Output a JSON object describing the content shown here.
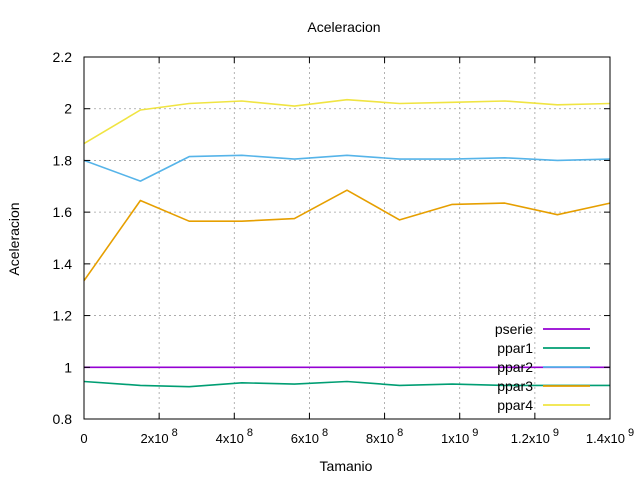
{
  "chart_data": {
    "type": "line",
    "title": "Aceleracion",
    "xlabel": "Tamanio",
    "ylabel": "Aceleracion",
    "xlim": [
      0,
      1400000000
    ],
    "ylim": [
      0.8,
      2.2
    ],
    "grid": true,
    "legend_position": "bottom-right",
    "x_ticks": [
      {
        "value": 0,
        "base": "0",
        "exp": ""
      },
      {
        "value": 200000000,
        "base": "2x10",
        "exp": "8"
      },
      {
        "value": 400000000,
        "base": "4x10",
        "exp": "8"
      },
      {
        "value": 600000000,
        "base": "6x10",
        "exp": "8"
      },
      {
        "value": 800000000,
        "base": "8x10",
        "exp": "8"
      },
      {
        "value": 1000000000,
        "base": "1x10",
        "exp": "9"
      },
      {
        "value": 1200000000,
        "base": "1.2x10",
        "exp": "9"
      },
      {
        "value": 1400000000,
        "base": "1.4x10",
        "exp": "9"
      }
    ],
    "y_ticks": [
      {
        "value": 0.8,
        "label": "0.8"
      },
      {
        "value": 1.0,
        "label": "1"
      },
      {
        "value": 1.2,
        "label": "1.2"
      },
      {
        "value": 1.4,
        "label": "1.4"
      },
      {
        "value": 1.6,
        "label": "1.6"
      },
      {
        "value": 1.8,
        "label": "1.8"
      },
      {
        "value": 2.0,
        "label": "2"
      },
      {
        "value": 2.2,
        "label": "2.2"
      }
    ],
    "x": [
      0,
      150000000,
      280000000,
      420000000,
      560000000,
      700000000,
      840000000,
      980000000,
      1120000000,
      1260000000,
      1400000000
    ],
    "series": [
      {
        "name": "pserie",
        "color": "#9400d3",
        "values": [
          1.0,
          1.0,
          1.0,
          1.0,
          1.0,
          1.0,
          1.0,
          1.0,
          1.0,
          1.0,
          1.0
        ]
      },
      {
        "name": "ppar1",
        "color": "#009e73",
        "values": [
          0.945,
          0.93,
          0.925,
          0.94,
          0.935,
          0.945,
          0.93,
          0.935,
          0.93,
          0.93,
          0.93
        ]
      },
      {
        "name": "ppar2",
        "color": "#56b4e9",
        "values": [
          1.8,
          1.72,
          1.815,
          1.82,
          1.805,
          1.82,
          1.805,
          1.805,
          1.81,
          1.8,
          1.805
        ]
      },
      {
        "name": "ppar3",
        "color": "#e69f00",
        "values": [
          1.335,
          1.645,
          1.565,
          1.565,
          1.575,
          1.685,
          1.57,
          1.63,
          1.635,
          1.59,
          1.635
        ]
      },
      {
        "name": "ppar4",
        "color": "#f0e442",
        "values": [
          1.865,
          1.995,
          2.02,
          2.03,
          2.01,
          2.035,
          2.02,
          2.025,
          2.03,
          2.015,
          2.02
        ]
      }
    ]
  }
}
